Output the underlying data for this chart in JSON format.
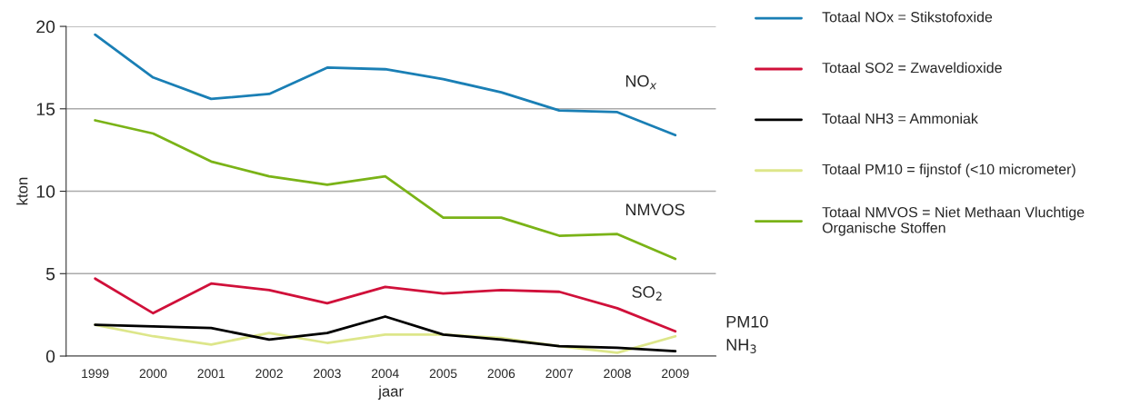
{
  "chart_data": {
    "type": "line",
    "xlabel": "jaar",
    "ylabel": "kton",
    "categories": [
      "1999",
      "2000",
      "2001",
      "2002",
      "2003",
      "2004",
      "2005",
      "2006",
      "2007",
      "2008",
      "2009"
    ],
    "series": [
      {
        "name": "Totaal NOx = Stikstofoxide",
        "color": "#1a7fb5",
        "values": [
          19.5,
          16.9,
          15.6,
          15.9,
          17.5,
          17.4,
          16.8,
          16.0,
          14.9,
          14.8,
          13.4
        ]
      },
      {
        "name": "Totaal SO2 = Zwaveldioxide",
        "color": "#d0103a",
        "values": [
          4.7,
          2.6,
          4.4,
          4.0,
          3.2,
          4.2,
          3.8,
          4.0,
          3.9,
          2.9,
          1.5
        ]
      },
      {
        "name": "Totaal NH3 = Ammoniak",
        "color": "#000000",
        "values": [
          1.9,
          1.8,
          1.7,
          1.0,
          1.4,
          2.4,
          1.3,
          1.0,
          0.6,
          0.5,
          0.3
        ]
      },
      {
        "name": "Totaal PM10 = fijnstof (<10 micrometer)",
        "color": "#dde68a",
        "values": [
          1.9,
          1.2,
          0.7,
          1.4,
          0.8,
          1.3,
          1.3,
          1.1,
          0.6,
          0.2,
          1.2
        ]
      },
      {
        "name": "Totaal NMVOS = Niet Methaan Vluchtige Organische Stoffen",
        "color": "#7ab317",
        "values": [
          14.3,
          13.5,
          11.8,
          10.9,
          10.4,
          10.9,
          8.4,
          8.4,
          7.3,
          7.4,
          5.9
        ]
      }
    ],
    "annotations": [
      "NO$_{x}$",
      "NMVOS",
      "SO$_{2}$",
      "PM10",
      "NH$_{3}$"
    ],
    "ylim": [
      0,
      20
    ],
    "yticks": [
      0,
      5,
      10,
      15,
      20
    ],
    "grid": "y",
    "legend": "right",
    "line_style": "solid",
    "marker": "none"
  }
}
